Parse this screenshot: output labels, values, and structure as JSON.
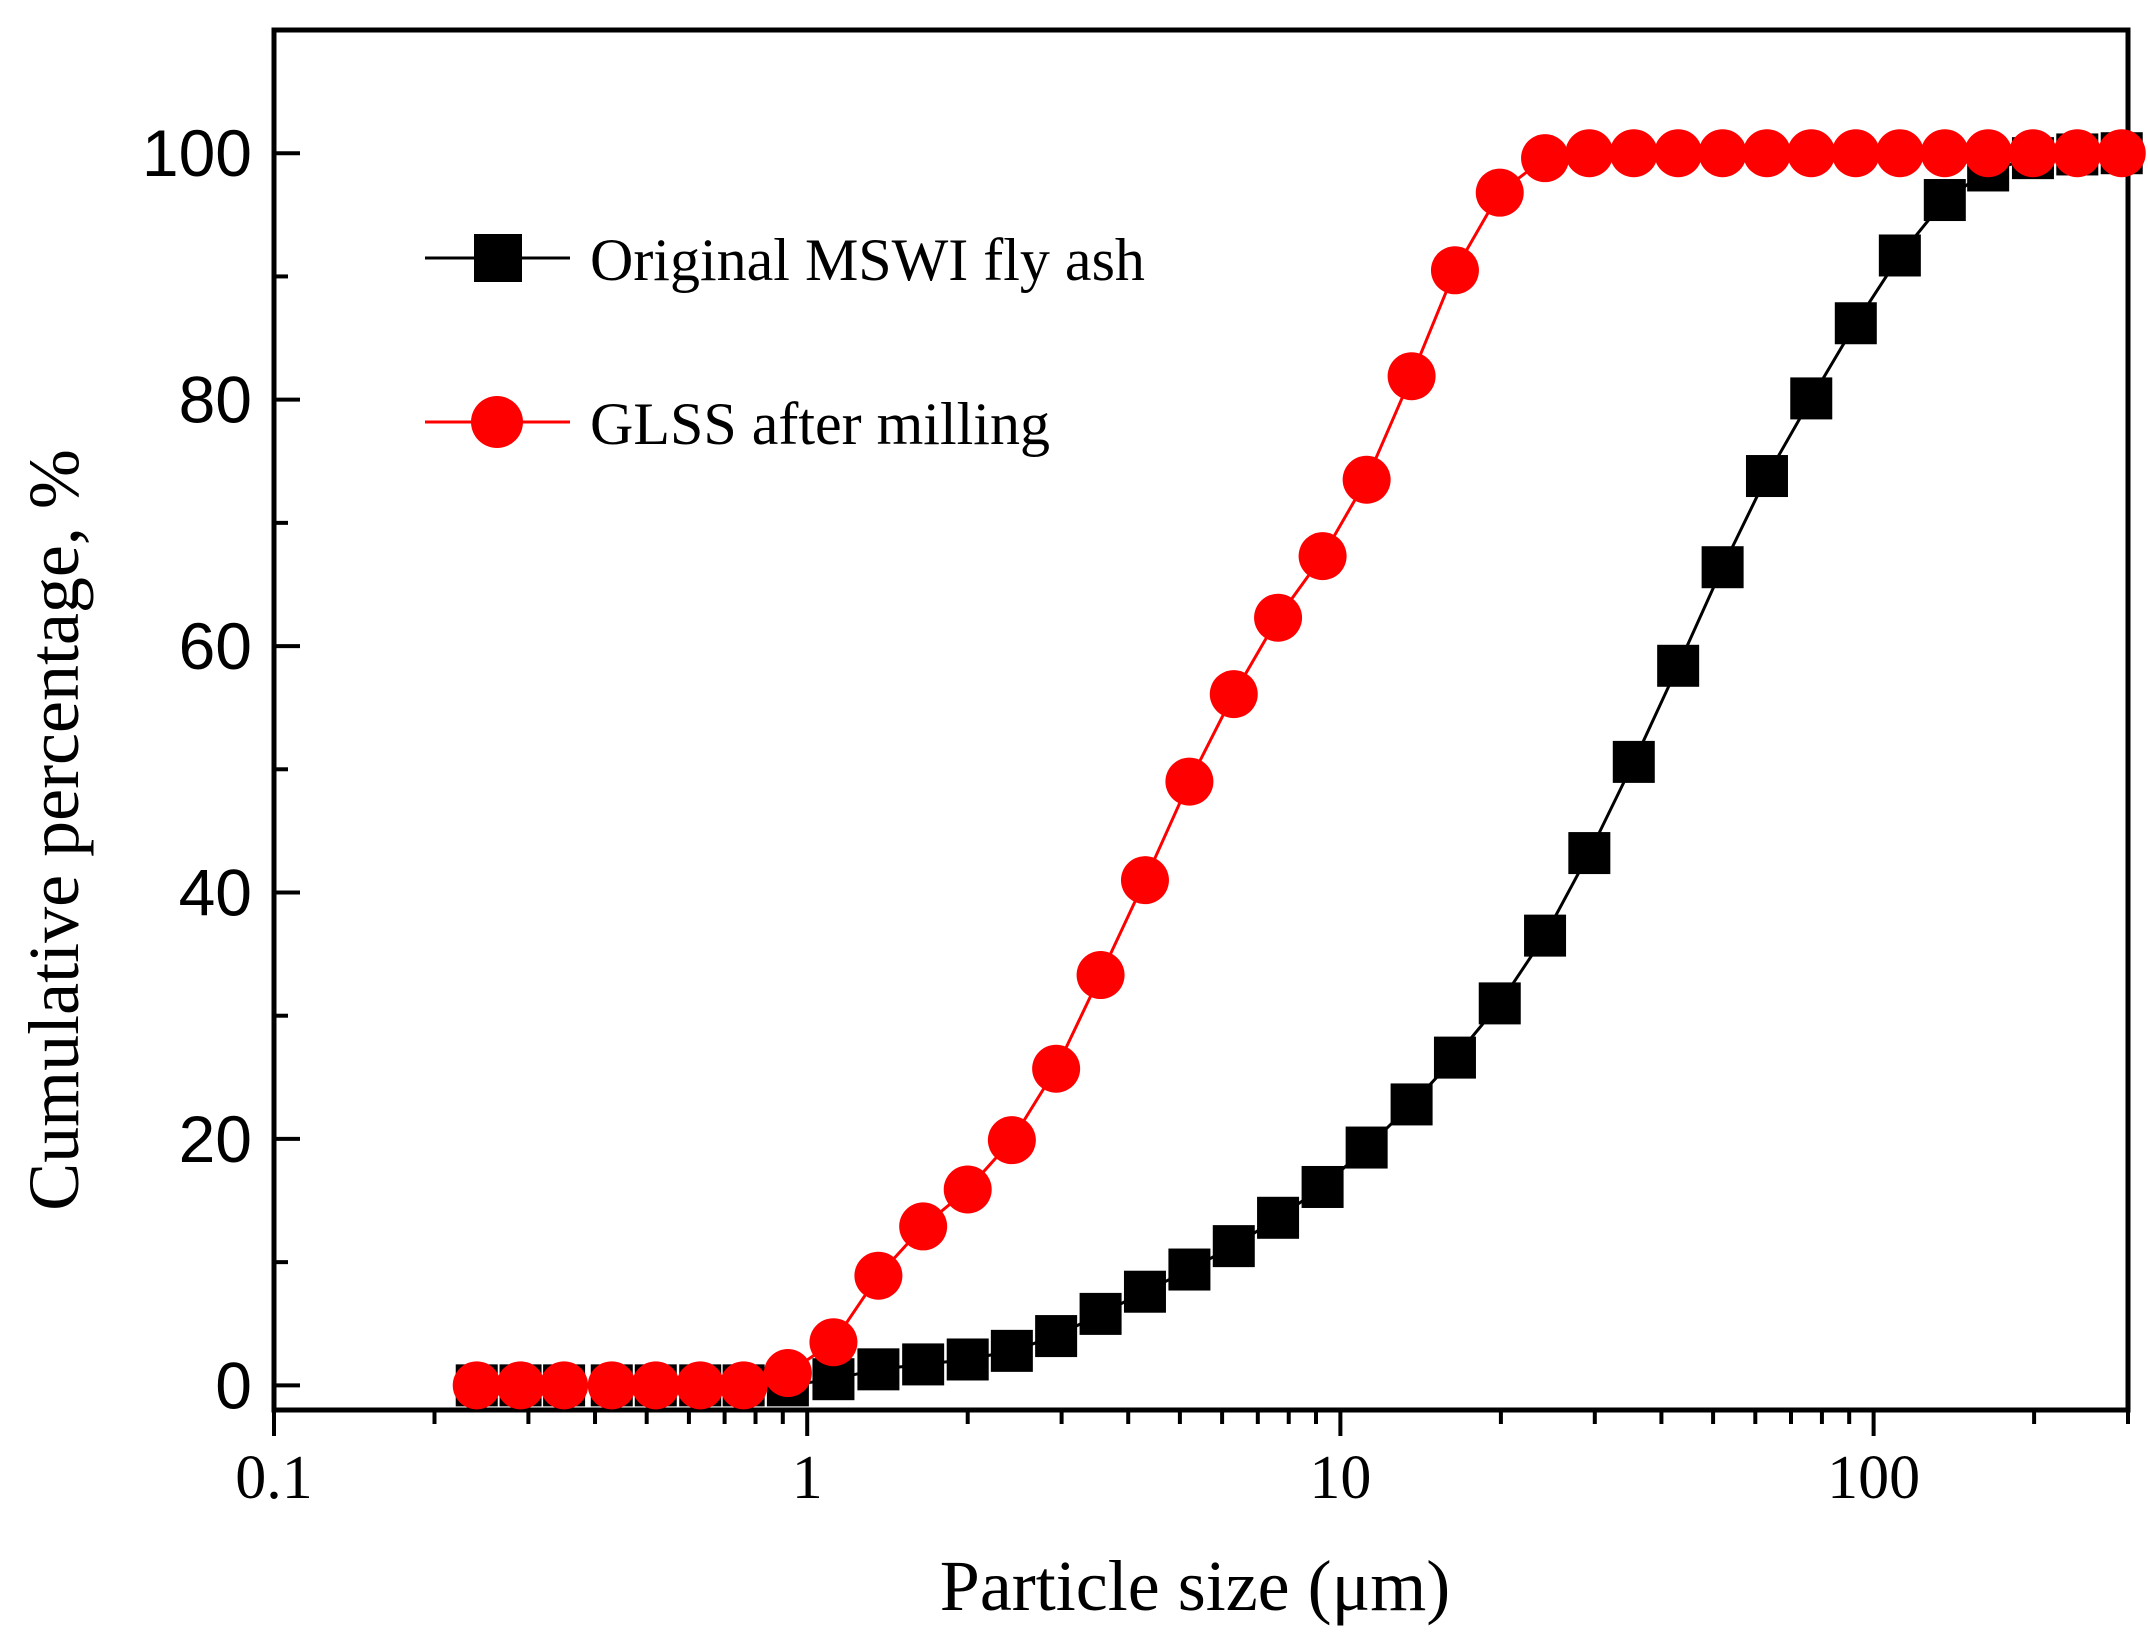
{
  "chart_data": {
    "type": "scatter",
    "title": "",
    "xlabel": "Particle size (μm)",
    "ylabel": "Cumulative percentage, %",
    "xscale": "log",
    "xlim": [
      0.1,
      300
    ],
    "ylim": [
      -2,
      110
    ],
    "x_ticks": [
      0.1,
      1,
      10,
      100
    ],
    "x_tick_labels": [
      "0.1",
      "1",
      "10",
      "100"
    ],
    "y_ticks": [
      0,
      20,
      40,
      60,
      80,
      100
    ],
    "y_tick_labels": [
      "0",
      "20",
      "40",
      "60",
      "80",
      "100"
    ],
    "grid": false,
    "legend_position": "top-left",
    "series": [
      {
        "name": "Original MSWI fly ash",
        "color": "#000000",
        "marker": "square",
        "x": [
          0.24,
          0.29,
          0.35,
          0.43,
          0.52,
          0.63,
          0.76,
          0.92,
          1.12,
          1.36,
          1.65,
          2.0,
          2.42,
          2.93,
          3.55,
          4.3,
          5.21,
          6.31,
          7.64,
          9.26,
          11.2,
          13.6,
          16.4,
          19.9,
          24.2,
          29.3,
          35.5,
          43.0,
          52.1,
          63.1,
          76.4,
          92.6,
          112,
          136,
          164,
          199,
          241,
          292
        ],
        "values": [
          0,
          0,
          0,
          0,
          0,
          0,
          0,
          0,
          0.5,
          1.3,
          1.7,
          2.1,
          2.8,
          4.0,
          5.8,
          7.6,
          9.4,
          11.3,
          13.6,
          16.1,
          19.3,
          22.8,
          26.6,
          31.0,
          36.5,
          43.2,
          50.6,
          58.4,
          66.4,
          73.8,
          80.1,
          86.2,
          91.7,
          96.2,
          98.6,
          99.6,
          99.9,
          100
        ]
      },
      {
        "name": "GLSS after milling",
        "color": "#ff0000",
        "marker": "circle",
        "x": [
          0.24,
          0.29,
          0.35,
          0.43,
          0.52,
          0.63,
          0.76,
          0.92,
          1.12,
          1.36,
          1.65,
          2.0,
          2.42,
          2.93,
          3.55,
          4.3,
          5.21,
          6.31,
          7.64,
          9.26,
          11.2,
          13.6,
          16.4,
          19.9,
          24.2,
          29.3,
          35.5,
          43.0,
          52.1,
          63.1,
          76.4,
          92.6,
          112,
          136,
          164,
          199,
          241,
          292
        ],
        "values": [
          0,
          0,
          0,
          0,
          0,
          0,
          0,
          1.0,
          3.5,
          8.9,
          12.9,
          15.9,
          19.9,
          25.7,
          33.3,
          41.0,
          49.0,
          56.1,
          62.3,
          67.3,
          73.5,
          81.9,
          90.5,
          96.8,
          99.6,
          100,
          100,
          100,
          100,
          100,
          100,
          100,
          100,
          100,
          100,
          100,
          100,
          100
        ]
      }
    ]
  }
}
